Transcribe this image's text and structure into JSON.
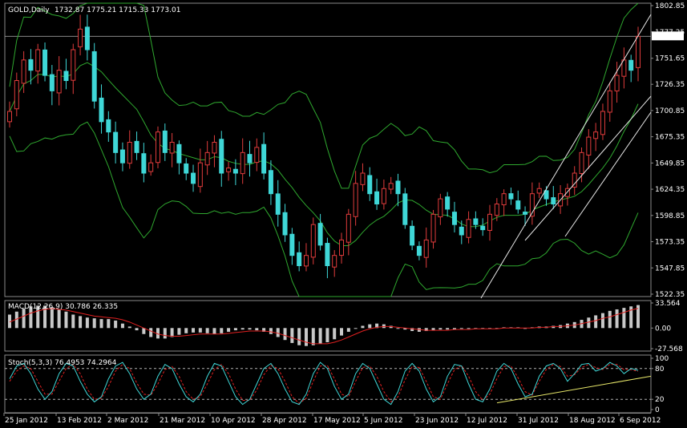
{
  "chart_data": [
    {
      "type": "candlestick",
      "title": "GOLD,Daily",
      "ohlc": {
        "open": 1732.87,
        "high": 1775.21,
        "low": 1715.33,
        "close": 1773.01
      },
      "ohlc_text": "1732.87 1775.21 1715.33 1773.01",
      "current_price_label": "1773.01",
      "y_ticks": [
        "1802.85",
        "1777.25",
        "1751.65",
        "1726.35",
        "1700.85",
        "1675.35",
        "1649.85",
        "1624.35",
        "1598.85",
        "1573.35",
        "1547.85",
        "1522.35"
      ],
      "ylim": [
        1522.35,
        1802.85
      ],
      "x_tick_labels": [
        "25 Jan 2012",
        "13 Feb 2012",
        "2 Mar 2012",
        "21 Mar 2012",
        "10 Apr 2012",
        "28 Apr 2012",
        "17 May 2012",
        "5 Jun 2012",
        "23 Jun 2012",
        "12 Jul 2012",
        "31 Jul 2012",
        "18 Aug 2012",
        "6 Sep 2012"
      ],
      "overlays": [
        "Bollinger Bands (upper, middle, lower)",
        "Upward trend channel lines"
      ],
      "close_series": [
        1700,
        1730,
        1750,
        1740,
        1760,
        1735,
        1720,
        1740,
        1730,
        1760,
        1780,
        1760,
        1710,
        1690,
        1680,
        1660,
        1650,
        1670,
        1660,
        1640,
        1650,
        1680,
        1660,
        1670,
        1650,
        1640,
        1630,
        1650,
        1660,
        1670,
        1640,
        1645,
        1640,
        1660,
        1650,
        1665,
        1640,
        1620,
        1600,
        1580,
        1560,
        1550,
        1560,
        1590,
        1570,
        1550,
        1560,
        1575,
        1600,
        1630,
        1640,
        1620,
        1610,
        1625,
        1630,
        1620,
        1590,
        1570,
        1560,
        1575,
        1600,
        1615,
        1605,
        1590,
        1580,
        1595,
        1590,
        1585,
        1600,
        1610,
        1620,
        1615,
        1605,
        1600,
        1620,
        1625,
        1615,
        1610,
        1620,
        1625,
        1640,
        1660,
        1675,
        1680,
        1700,
        1720,
        1735,
        1750,
        1740,
        1773.01
      ]
    },
    {
      "type": "bar",
      "title": "MACD(12,26,9) 30.786 26.335",
      "indicator_text": "30.786 26.335",
      "y_ticks": [
        "33.564",
        "0.00",
        "-27.568"
      ],
      "ylim": [
        -27.568,
        33.564
      ],
      "series": [
        {
          "kind": "histogram",
          "values": [
            18,
            22,
            26,
            29,
            30,
            30,
            28,
            25,
            22,
            18,
            16,
            14,
            13,
            12,
            12,
            10,
            6,
            2,
            -3,
            -8,
            -12,
            -14,
            -14,
            -12,
            -9,
            -7,
            -6,
            -6,
            -7,
            -8,
            -7,
            -5,
            -3,
            -2,
            -2,
            -3,
            -5,
            -8,
            -12,
            -16,
            -20,
            -23,
            -24,
            -23,
            -21,
            -19,
            -15,
            -10,
            -5,
            0,
            3,
            5,
            6,
            5,
            3,
            0,
            -2,
            -4,
            -5,
            -4,
            -3,
            -2,
            -2,
            -2,
            -1,
            -1,
            -1,
            -1,
            0,
            0,
            1,
            1,
            1,
            0,
            1,
            2,
            2,
            3,
            4,
            6,
            8,
            11,
            14,
            17,
            20,
            23,
            25,
            27,
            29,
            30.786
          ]
        },
        {
          "kind": "signal",
          "values": [
            8,
            12,
            16,
            20,
            23,
            25,
            26,
            25,
            24,
            22,
            20,
            18,
            16,
            15,
            14,
            13,
            11,
            8,
            4,
            0,
            -4,
            -8,
            -10,
            -11,
            -11,
            -10,
            -9,
            -8,
            -8,
            -8,
            -8,
            -7,
            -6,
            -5,
            -4,
            -4,
            -4,
            -5,
            -7,
            -10,
            -13,
            -16,
            -19,
            -21,
            -21,
            -21,
            -19,
            -16,
            -12,
            -8,
            -4,
            -1,
            1,
            2,
            2,
            1,
            0,
            -1,
            -2,
            -3,
            -3,
            -3,
            -3,
            -2,
            -2,
            -2,
            -1,
            -1,
            -1,
            -1,
            0,
            0,
            0,
            0,
            0,
            1,
            1,
            2,
            2,
            3,
            4,
            6,
            8,
            10,
            13,
            15,
            18,
            21,
            24,
            26.335
          ]
        }
      ]
    },
    {
      "type": "line",
      "title": "Stoch(5,3,3) 76.4953 74.2964",
      "indicator_text": "76.4953 74.2964",
      "y_ticks": [
        "100",
        "80",
        "20",
        "0"
      ],
      "ylim": [
        0,
        100
      ],
      "levels": [
        80,
        20
      ],
      "series": [
        {
          "kind": "main",
          "values": [
            60,
            85,
            90,
            70,
            40,
            20,
            35,
            70,
            90,
            85,
            55,
            30,
            15,
            25,
            60,
            85,
            92,
            70,
            40,
            20,
            30,
            65,
            88,
            80,
            50,
            25,
            15,
            30,
            65,
            90,
            85,
            55,
            25,
            10,
            20,
            50,
            80,
            90,
            70,
            40,
            15,
            10,
            30,
            70,
            92,
            80,
            45,
            20,
            30,
            70,
            90,
            80,
            50,
            20,
            10,
            35,
            75,
            90,
            75,
            40,
            15,
            25,
            65,
            88,
            85,
            50,
            20,
            15,
            40,
            75,
            90,
            80,
            50,
            25,
            30,
            65,
            85,
            90,
            80,
            55,
            70,
            88,
            90,
            75,
            80,
            92,
            85,
            70,
            80,
            76.4953
          ]
        },
        {
          "kind": "signal",
          "values": [
            55,
            75,
            85,
            80,
            55,
            30,
            30,
            55,
            80,
            88,
            70,
            40,
            20,
            22,
            45,
            75,
            88,
            80,
            52,
            30,
            28,
            50,
            78,
            84,
            65,
            35,
            20,
            25,
            50,
            78,
            88,
            70,
            40,
            18,
            18,
            38,
            68,
            86,
            80,
            55,
            25,
            12,
            22,
            55,
            85,
            86,
            60,
            30,
            25,
            55,
            82,
            85,
            65,
            35,
            15,
            25,
            58,
            84,
            82,
            55,
            25,
            20,
            50,
            78,
            86,
            65,
            35,
            18,
            30,
            60,
            84,
            85,
            62,
            35,
            28,
            55,
            78,
            88,
            84,
            65,
            68,
            82,
            88,
            82,
            78,
            88,
            88,
            78,
            78,
            74.2964
          ]
        }
      ],
      "trendline": "rising support line"
    }
  ]
}
